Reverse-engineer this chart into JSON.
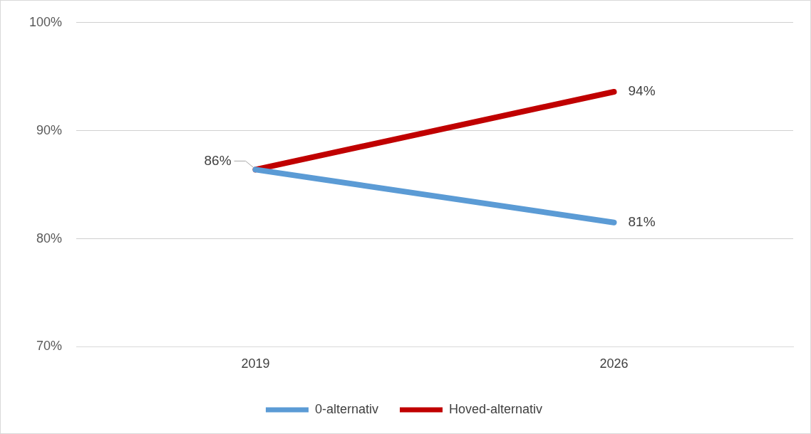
{
  "chart_data": {
    "type": "line",
    "categories": [
      "2019",
      "2026"
    ],
    "series": [
      {
        "name": "0-alternativ",
        "color": "#5b9bd5",
        "values": [
          86.4,
          81.5
        ],
        "value_labels": [
          "86%",
          "81%"
        ]
      },
      {
        "name": "Hoved-alternativ",
        "color": "#c00000",
        "values": [
          86.4,
          93.6
        ],
        "value_labels": [
          null,
          "94%"
        ]
      }
    ],
    "ylim": [
      70,
      100
    ],
    "yticks": [
      {
        "value": 70,
        "label": "70%"
      },
      {
        "value": 80,
        "label": "80%"
      },
      {
        "value": 90,
        "label": "90%"
      },
      {
        "value": 100,
        "label": "100%"
      }
    ],
    "grid": "y",
    "legend": "bottom",
    "marker": "none",
    "line_style": "solid"
  }
}
